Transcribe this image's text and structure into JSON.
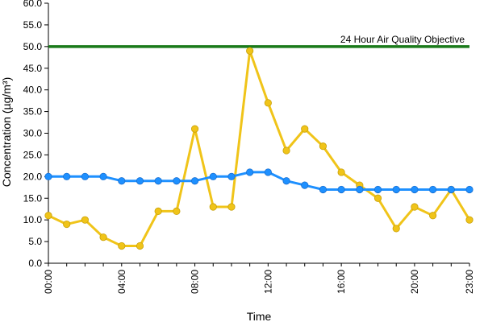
{
  "chart_data": {
    "type": "line",
    "title": "",
    "xlabel": "Time",
    "ylabel": "Concentration (µg/m³)",
    "ylim": [
      0,
      60
    ],
    "y_ticks": [
      "0.0",
      "5.0",
      "10.0",
      "15.0",
      "20.0",
      "25.0",
      "30.0",
      "35.0",
      "40.0",
      "45.0",
      "50.0",
      "55.0",
      "60.0"
    ],
    "x": [
      "00:00",
      "01:00",
      "02:00",
      "03:00",
      "04:00",
      "05:00",
      "06:00",
      "07:00",
      "08:00",
      "09:00",
      "10:00",
      "11:00",
      "12:00",
      "13:00",
      "14:00",
      "15:00",
      "16:00",
      "17:00",
      "18:00",
      "19:00",
      "20:00",
      "21:00",
      "22:00",
      "23:00"
    ],
    "x_tick_labels": [
      "00:00",
      "04:00",
      "08:00",
      "12:00",
      "16:00",
      "20:00",
      "23:00"
    ],
    "grid": false,
    "legend": "none",
    "series": [
      {
        "color": "#f0c419",
        "values": [
          11,
          9,
          10,
          6,
          4,
          4,
          12,
          12,
          31,
          13,
          13,
          49,
          37,
          26,
          31,
          27,
          21,
          18,
          15,
          8,
          13,
          11,
          17,
          10
        ]
      },
      {
        "color": "#1e90ff",
        "values": [
          20,
          20,
          20,
          20,
          19,
          19,
          19,
          19,
          19,
          20,
          20,
          21,
          21,
          19,
          18,
          17,
          17,
          17,
          17,
          17,
          17,
          17,
          17,
          17
        ]
      }
    ],
    "reference_line": {
      "value": 50,
      "label": "24 Hour Air Quality Objective",
      "color": "#1a7a1a"
    }
  }
}
